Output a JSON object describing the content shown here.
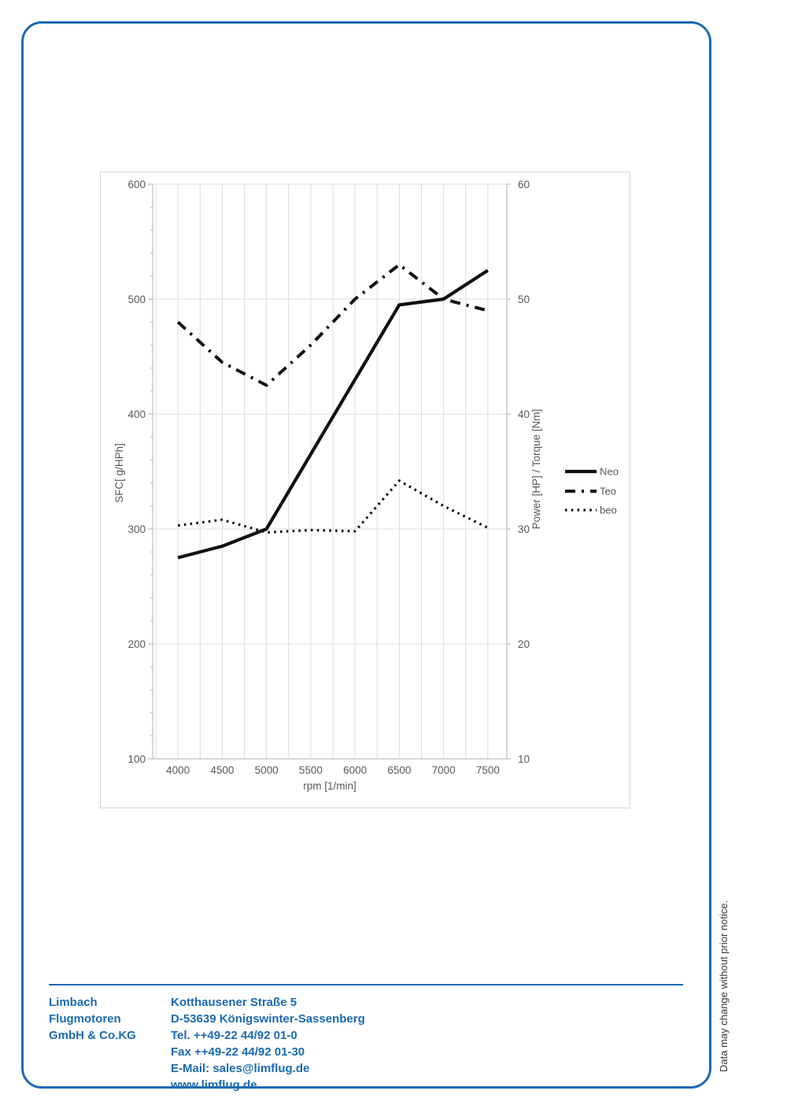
{
  "colors": {
    "accent_blue": "#1c6ab1",
    "grid": "#dcdcdc",
    "axis": "#bfbfbf",
    "tick_label": "#595959",
    "series_black": "#111111"
  },
  "page": {
    "vertical_note": "Data may change without prior notice."
  },
  "footer": {
    "company_line1": "Limbach Flugmotoren",
    "company_line2": "GmbH & Co.KG",
    "address_lines": [
      "Kotthausener Straße 5",
      "D-53639 Königswinter-Sassenberg",
      "Tel. ++49-22 44/92 01-0",
      "Fax ++49-22 44/92 01-30",
      "E-Mail: sales@limflug.de",
      "www.limflug.de"
    ]
  },
  "chart_data": {
    "type": "line",
    "x": [
      4000,
      4500,
      5000,
      5500,
      6000,
      6500,
      7000,
      7500
    ],
    "xlabel": "rpm [1/min]",
    "ylabel_left": "SFC[ g/HPh]",
    "ylabel_right": "Power [HP] / Torque [Nm]",
    "ylim_left": [
      100,
      600
    ],
    "ylim_right": [
      10,
      60
    ],
    "yticks_left": [
      100,
      200,
      300,
      400,
      500,
      600
    ],
    "yticks_right": [
      10,
      20,
      30,
      40,
      50,
      60
    ],
    "grid": true,
    "legend_position": "right-middle",
    "series": [
      {
        "name": "Neo",
        "axis": "right",
        "style": "solid",
        "values": [
          27.5,
          28.5,
          30,
          36.5,
          43,
          49.5,
          50,
          52.5
        ]
      },
      {
        "name": "Teo",
        "axis": "right",
        "style": "dashdot",
        "values": [
          48,
          44.5,
          42.5,
          46,
          50,
          53,
          50,
          49
        ]
      },
      {
        "name": "beo",
        "axis": "left",
        "style": "dotted",
        "values": [
          303,
          308,
          297,
          299,
          298,
          342,
          320,
          301
        ]
      }
    ]
  }
}
